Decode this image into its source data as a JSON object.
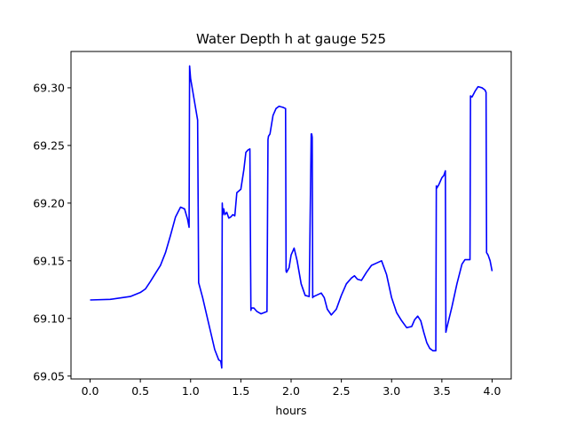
{
  "chart_data": {
    "type": "line",
    "title": "Water Depth h at gauge 525",
    "xlabel": "hours",
    "ylabel": "",
    "xlim": [
      -0.19,
      4.19
    ],
    "ylim": [
      69.0475,
      69.3315
    ],
    "xticks": [
      0.0,
      0.5,
      1.0,
      1.5,
      2.0,
      2.5,
      3.0,
      3.5,
      4.0
    ],
    "xtick_labels": [
      "0.0",
      "0.5",
      "1.0",
      "1.5",
      "2.0",
      "2.5",
      "3.0",
      "3.5",
      "4.0"
    ],
    "yticks": [
      69.05,
      69.1,
      69.15,
      69.2,
      69.25,
      69.3
    ],
    "ytick_labels": [
      "69.05",
      "69.10",
      "69.15",
      "69.20",
      "69.25",
      "69.30"
    ],
    "grid": false,
    "legend": "none",
    "series": [
      {
        "color": "#0000ff",
        "x": [
          0.0,
          0.2,
          0.4,
          0.5,
          0.55,
          0.6,
          0.65,
          0.7,
          0.75,
          0.8,
          0.85,
          0.9,
          0.94,
          0.97,
          0.985,
          0.99,
          1.0,
          1.07,
          1.08,
          1.12,
          1.16,
          1.2,
          1.24,
          1.28,
          1.3,
          1.305,
          1.31,
          1.315,
          1.32,
          1.33,
          1.34,
          1.36,
          1.38,
          1.4,
          1.42,
          1.44,
          1.46,
          1.5,
          1.53,
          1.55,
          1.57,
          1.59,
          1.6,
          1.605,
          1.63,
          1.66,
          1.7,
          1.76,
          1.77,
          1.775,
          1.79,
          1.82,
          1.85,
          1.88,
          1.92,
          1.945,
          1.95,
          1.955,
          1.98,
          2.0,
          2.03,
          2.06,
          2.1,
          2.14,
          2.18,
          2.2,
          2.205,
          2.21,
          2.215,
          2.22,
          2.225,
          2.25,
          2.3,
          2.33,
          2.36,
          2.4,
          2.45,
          2.5,
          2.55,
          2.6,
          2.63,
          2.66,
          2.7,
          2.75,
          2.8,
          2.85,
          2.9,
          2.95,
          3.0,
          3.05,
          3.1,
          3.15,
          3.2,
          3.23,
          3.26,
          3.29,
          3.32,
          3.35,
          3.38,
          3.41,
          3.44,
          3.445,
          3.45,
          3.47,
          3.5,
          3.52,
          3.535,
          3.54,
          3.55,
          3.6,
          3.65,
          3.7,
          3.73,
          3.76,
          3.78,
          3.785,
          3.8,
          3.83,
          3.86,
          3.9,
          3.93,
          3.94,
          3.945,
          3.96,
          3.98,
          4.0
        ],
        "y": [
          69.116,
          69.1165,
          69.119,
          69.1225,
          69.1255,
          69.132,
          69.139,
          69.146,
          69.157,
          69.172,
          69.188,
          69.1965,
          69.195,
          69.186,
          69.179,
          69.319,
          69.308,
          69.272,
          69.131,
          69.118,
          69.103,
          69.088,
          69.073,
          69.064,
          69.063,
          69.06,
          69.057,
          69.2,
          69.19,
          69.195,
          69.19,
          69.192,
          69.187,
          69.188,
          69.19,
          69.189,
          69.209,
          69.212,
          69.229,
          69.244,
          69.246,
          69.247,
          69.107,
          69.109,
          69.109,
          69.106,
          69.104,
          69.106,
          69.255,
          69.258,
          69.26,
          69.276,
          69.282,
          69.284,
          69.283,
          69.282,
          69.141,
          69.14,
          69.144,
          69.155,
          69.161,
          69.15,
          69.13,
          69.12,
          69.119,
          69.26,
          69.26,
          69.257,
          69.118,
          69.119,
          69.119,
          69.12,
          69.122,
          69.118,
          69.108,
          69.103,
          69.108,
          69.12,
          69.13,
          69.135,
          69.137,
          69.134,
          69.133,
          69.14,
          69.146,
          69.148,
          69.15,
          69.138,
          69.118,
          69.105,
          69.098,
          69.092,
          69.093,
          69.099,
          69.102,
          69.098,
          69.088,
          69.079,
          69.074,
          69.072,
          69.072,
          69.215,
          69.213,
          69.216,
          69.222,
          69.224,
          69.228,
          69.088,
          69.092,
          69.11,
          69.13,
          69.147,
          69.151,
          69.151,
          69.151,
          69.293,
          69.292,
          69.297,
          69.301,
          69.3,
          69.298,
          69.296,
          69.157,
          69.155,
          69.15,
          69.141
        ]
      }
    ]
  }
}
